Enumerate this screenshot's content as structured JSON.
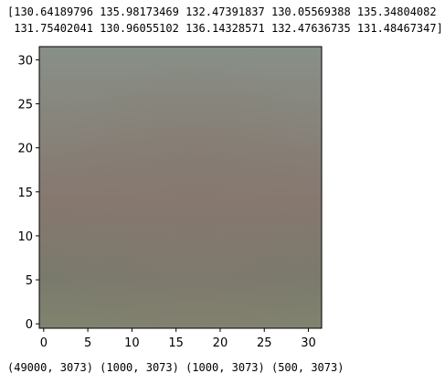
{
  "console": {
    "mean_line_1": "[130.64189796 135.98173469 132.47391837 130.05569388 135.34804082",
    "mean_line_2": " 131.75402041 130.96055102 136.14328571 132.47636735 131.48467347]",
    "shapes_line": "(49000, 3073) (1000, 3073) (1000, 3073) (500, 3073)"
  },
  "chart_data": {
    "type": "heatmap",
    "title": "",
    "xlabel": "",
    "ylabel": "",
    "x_ticks": [
      0,
      5,
      10,
      15,
      20,
      25,
      30
    ],
    "y_ticks": [
      0,
      5,
      10,
      15,
      20,
      25,
      30
    ],
    "xlim": [
      -0.5,
      31.5
    ],
    "ylim": [
      31.5,
      -0.5
    ],
    "image_size": [
      32,
      32
    ],
    "grid": false,
    "colors": {
      "top": "#889088",
      "center": "#86786f",
      "lower": "#7a7a6c",
      "bottom": "#81836f",
      "frame": "#000000"
    }
  }
}
